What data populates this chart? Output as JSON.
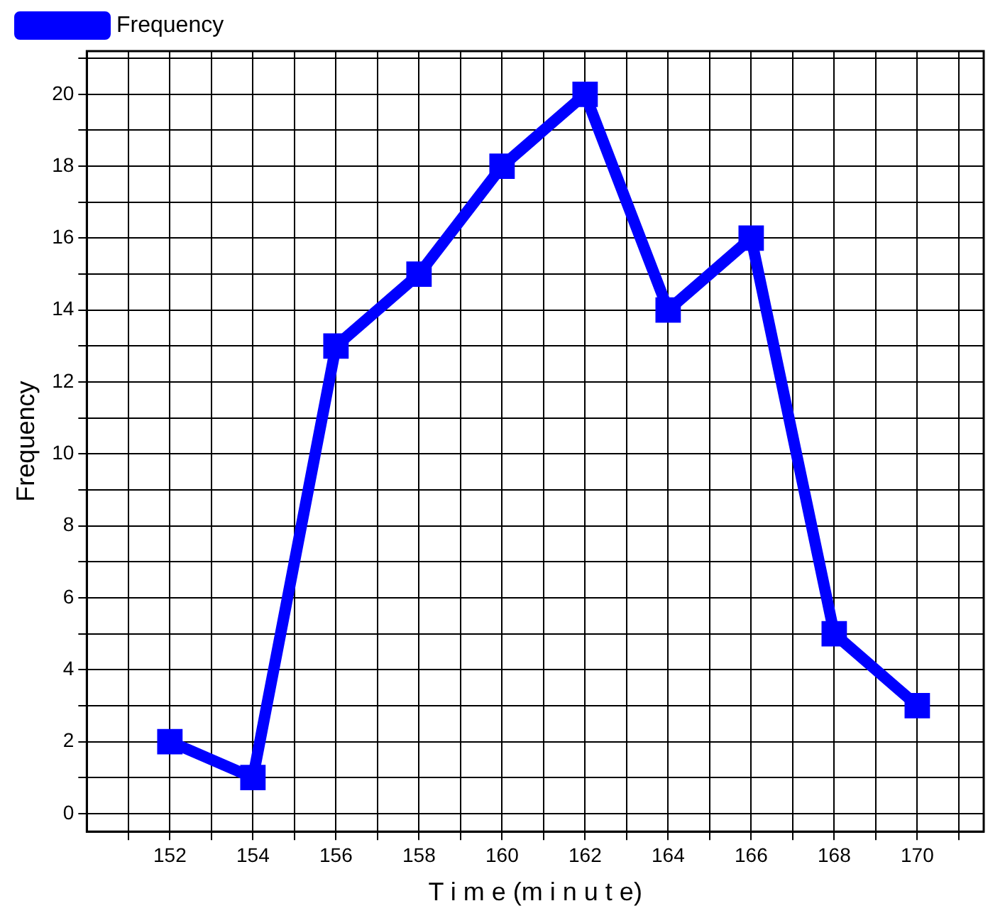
{
  "chart_data": {
    "type": "line",
    "xlabel": "T i m e (m i n u t e)",
    "ylabel": "Frequency",
    "x": [
      152,
      154,
      156,
      158,
      160,
      162,
      164,
      166,
      168,
      170
    ],
    "series": [
      {
        "name": "Frequency",
        "color": "#0000ff",
        "values": [
          2,
          1,
          13,
          15,
          18,
          20,
          14,
          16,
          5,
          3
        ]
      }
    ],
    "xlim": [
      150,
      171.6
    ],
    "ylim": [
      -0.5,
      21.2
    ],
    "xticks": [
      {
        "value": 151,
        "label": null
      },
      152,
      {
        "value": 153,
        "label": null
      },
      154,
      {
        "value": 155,
        "label": null
      },
      156,
      {
        "value": 157,
        "label": null
      },
      158,
      {
        "value": 159,
        "label": null
      },
      160,
      {
        "value": 161,
        "label": null
      },
      162,
      {
        "value": 163,
        "label": null
      },
      164,
      {
        "value": 165,
        "label": null
      },
      166,
      {
        "value": 167,
        "label": null
      },
      168,
      {
        "value": 169,
        "label": null
      },
      170,
      {
        "value": 171,
        "label": null
      }
    ],
    "yticks": [
      0,
      {
        "value": 1,
        "label": null
      },
      2,
      {
        "value": 3,
        "label": null
      },
      4,
      {
        "value": 5,
        "label": null
      },
      6,
      {
        "value": 7,
        "label": null
      },
      8,
      {
        "value": 9,
        "label": null
      },
      10,
      {
        "value": 11,
        "label": null
      },
      12,
      {
        "value": 13,
        "label": null
      },
      14,
      {
        "value": 15,
        "label": null
      },
      16,
      {
        "value": 17,
        "label": null
      },
      18,
      {
        "value": 19,
        "label": null
      },
      20,
      {
        "value": 21,
        "label": null
      }
    ],
    "grid": true,
    "legend": "top left",
    "marker": "square",
    "line_style": "solid"
  }
}
